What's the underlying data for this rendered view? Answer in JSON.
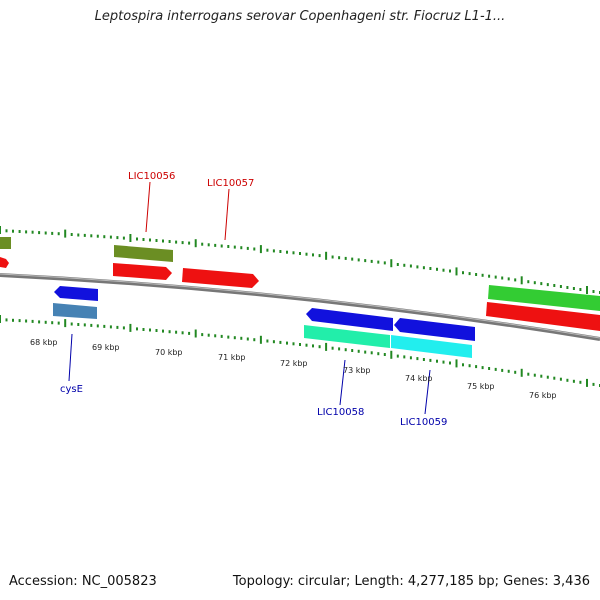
{
  "title": "Leptospira interrogans serovar Copenhageni str. Fiocruz L1-1...",
  "footer": {
    "accession": "Accession: NC_005823",
    "stats": "Topology: circular; Length: 4,277,185 bp; Genes: 3,436"
  },
  "kbp_labels": [
    "68 kbp",
    "69 kbp",
    "70 kbp",
    "71 kbp",
    "72 kbp",
    "73 kbp",
    "74 kbp",
    "75 kbp",
    "76 kbp"
  ],
  "gene_labels": {
    "lic10056": "LIC10056",
    "lic10057": "LIC10057",
    "cyse": "cysE",
    "lic10058": "LIC10058",
    "lic10059": "LIC10059"
  },
  "colors": {
    "forward_cds": "#ee1111",
    "forward_gene_olive": "#6b8e23",
    "forward_gene_green": "#33cc33",
    "reverse_cds": "#1111dd",
    "reverse_gene_steel": "#4682b4",
    "reverse_gene_aqua": "#22eeaa",
    "reverse_gene_cyan": "#22eeee",
    "backbone": "#888888",
    "tick": "#228822",
    "label_forward": "#cc0000",
    "label_reverse": "#0000aa"
  }
}
